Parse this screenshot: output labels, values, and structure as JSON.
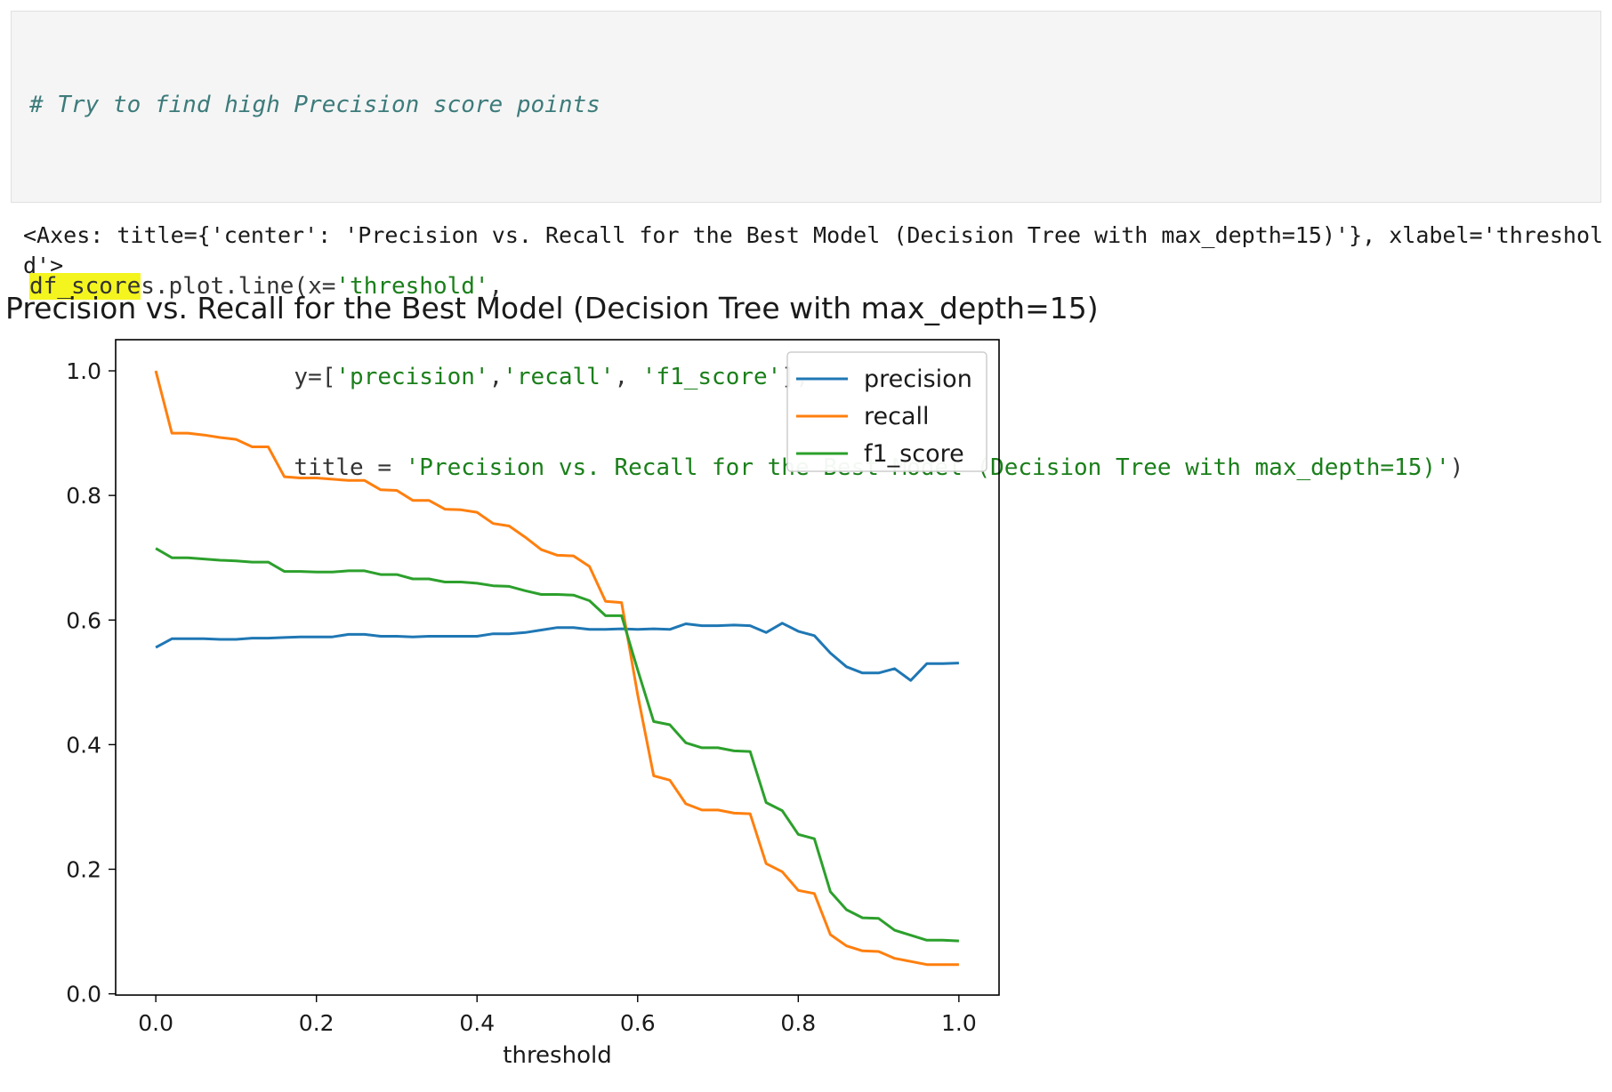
{
  "code": {
    "comment": "# Try to find high Precision score points",
    "line2_highlight": "df_score",
    "line2_rest_prefix": "s.plot.line(x=",
    "line2_str": "'threshold'",
    "line2_suffix": ",",
    "line3_prefix": "y=[",
    "line3_str1": "'precision'",
    "line3_sep1": ",",
    "line3_str2": "'recall'",
    "line3_sep2": ", ",
    "line3_str3": "'f1_score'",
    "line3_suffix": "],",
    "line4_prefix": "title = ",
    "line4_str": "'Precision vs. Recall for the Best Model (Decision Tree with max_depth=15)'",
    "line4_suffix": ")"
  },
  "output": {
    "repr": "<Axes: title={'center': 'Precision vs. Recall for the Best Model (Decision Tree with max_depth=15)'}, xlabel='threshold'>"
  },
  "chart_data": {
    "type": "line",
    "title": "Precision vs. Recall for the Best Model (Decision Tree with max_depth=15)",
    "xlabel": "threshold",
    "ylabel": "",
    "xlim": [
      -0.05,
      1.05
    ],
    "ylim": [
      -0.002,
      1.05
    ],
    "xticks": [
      "0.0",
      "0.2",
      "0.4",
      "0.6",
      "0.8",
      "1.0"
    ],
    "yticks": [
      "0.0",
      "0.2",
      "0.4",
      "0.6",
      "0.8",
      "1.0"
    ],
    "grid": false,
    "legend_position": "top-right",
    "x": [
      0.0,
      0.02,
      0.04,
      0.06,
      0.08,
      0.1,
      0.12,
      0.14,
      0.16,
      0.18,
      0.2,
      0.22,
      0.24,
      0.26,
      0.28,
      0.3,
      0.32,
      0.34,
      0.36,
      0.38,
      0.4,
      0.42,
      0.44,
      0.46,
      0.48,
      0.5,
      0.52,
      0.54,
      0.56,
      0.58,
      0.6,
      0.62,
      0.64,
      0.66,
      0.68,
      0.7,
      0.72,
      0.74,
      0.76,
      0.78,
      0.8,
      0.82,
      0.84,
      0.86,
      0.88,
      0.9,
      0.92,
      0.94,
      0.96,
      0.98,
      1.0
    ],
    "series": [
      {
        "name": "precision",
        "color": "#1f77b4",
        "values": [
          0.556,
          0.57,
          0.57,
          0.57,
          0.569,
          0.569,
          0.571,
          0.571,
          0.572,
          0.573,
          0.573,
          0.573,
          0.577,
          0.577,
          0.574,
          0.574,
          0.573,
          0.574,
          0.574,
          0.574,
          0.574,
          0.578,
          0.578,
          0.58,
          0.584,
          0.588,
          0.588,
          0.585,
          0.585,
          0.586,
          0.585,
          0.586,
          0.585,
          0.594,
          0.591,
          0.591,
          0.592,
          0.591,
          0.58,
          0.595,
          0.582,
          0.575,
          0.547,
          0.525,
          0.515,
          0.515,
          0.522,
          0.503,
          0.53,
          0.53,
          0.531
        ]
      },
      {
        "name": "recall",
        "color": "#ff7f0e",
        "values": [
          1.0,
          0.9,
          0.9,
          0.897,
          0.893,
          0.89,
          0.878,
          0.878,
          0.83,
          0.828,
          0.828,
          0.826,
          0.824,
          0.824,
          0.809,
          0.808,
          0.792,
          0.792,
          0.778,
          0.777,
          0.773,
          0.755,
          0.751,
          0.733,
          0.713,
          0.704,
          0.703,
          0.686,
          0.63,
          0.628,
          0.48,
          0.35,
          0.343,
          0.305,
          0.295,
          0.295,
          0.29,
          0.289,
          0.209,
          0.196,
          0.166,
          0.161,
          0.095,
          0.077,
          0.069,
          0.068,
          0.057,
          0.052,
          0.047,
          0.047,
          0.047
        ]
      },
      {
        "name": "f1_score",
        "color": "#2ca02c",
        "values": [
          0.715,
          0.7,
          0.7,
          0.698,
          0.696,
          0.695,
          0.693,
          0.693,
          0.678,
          0.678,
          0.677,
          0.677,
          0.679,
          0.679,
          0.673,
          0.673,
          0.666,
          0.666,
          0.661,
          0.661,
          0.659,
          0.655,
          0.654,
          0.647,
          0.641,
          0.641,
          0.64,
          0.631,
          0.607,
          0.607,
          0.52,
          0.437,
          0.432,
          0.403,
          0.395,
          0.395,
          0.39,
          0.389,
          0.307,
          0.294,
          0.256,
          0.249,
          0.164,
          0.135,
          0.122,
          0.121,
          0.102,
          0.094,
          0.086,
          0.086,
          0.085
        ]
      }
    ]
  }
}
